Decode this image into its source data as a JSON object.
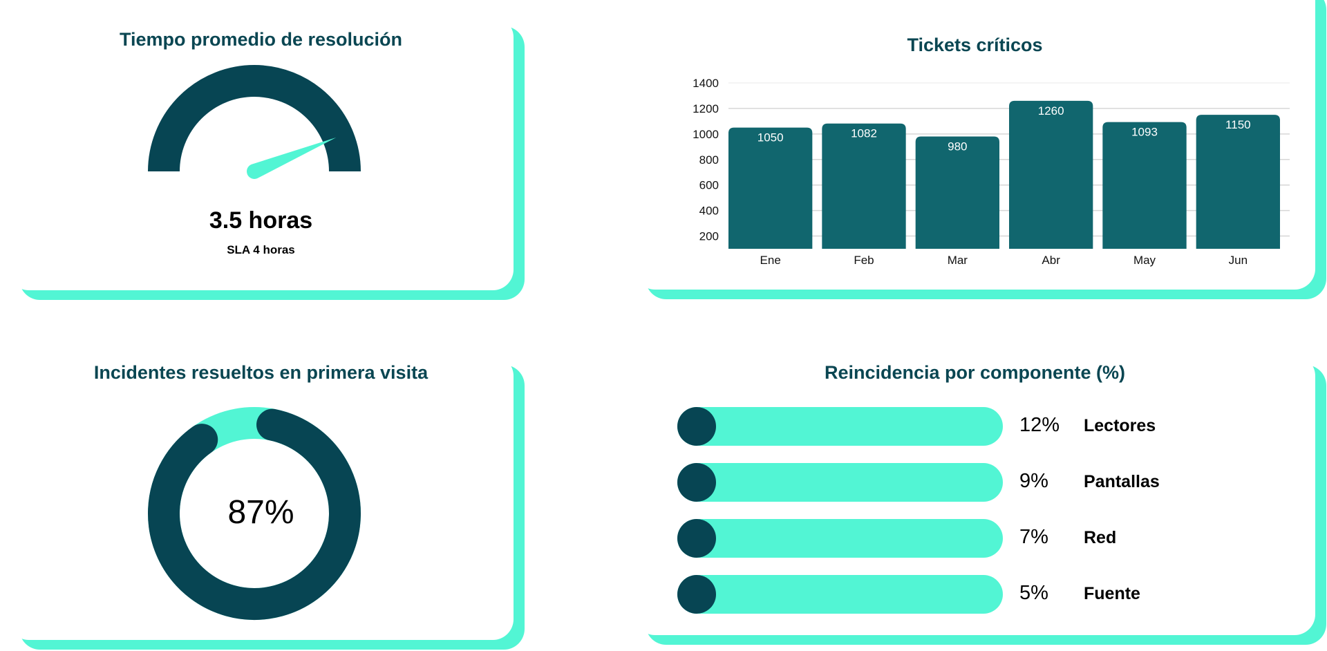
{
  "colors": {
    "dark": "#074553",
    "bar": "#11666e",
    "mint": "#52f5d4",
    "title": "#0a4652"
  },
  "gauge": {
    "title": "Tiempo promedio de resolución",
    "value": 3.5,
    "max": 4,
    "value_label": "3.5 horas",
    "sla_label": "SLA 4 horas"
  },
  "donut": {
    "title": "Incidentes resueltos en primera visita",
    "percent": 87,
    "label": "87%"
  },
  "chart_data": [
    {
      "type": "bar",
      "title": "Tickets críticos",
      "categories": [
        "Ene",
        "Feb",
        "Mar",
        "Abr",
        "May",
        "Jun"
      ],
      "values": [
        1050,
        1082,
        980,
        1260,
        1093,
        1150
      ],
      "value_labels": [
        "1050",
        "1082",
        "980",
        "1260",
        "1093",
        "1150"
      ],
      "yticks": [
        "200",
        "400",
        "600",
        "800",
        "1000",
        "1200",
        "1400"
      ],
      "ylim": [
        100,
        1400
      ],
      "xlabel": "",
      "ylabel": "",
      "grid": true
    },
    {
      "type": "bar",
      "title": "Reincidencia por componente (%)",
      "categories": [
        "Lectores",
        "Pantallas",
        "Red",
        "Fuente"
      ],
      "values": [
        12,
        9,
        7,
        5
      ],
      "value_labels": [
        "12%",
        "9%",
        "7%",
        "5%"
      ]
    }
  ]
}
